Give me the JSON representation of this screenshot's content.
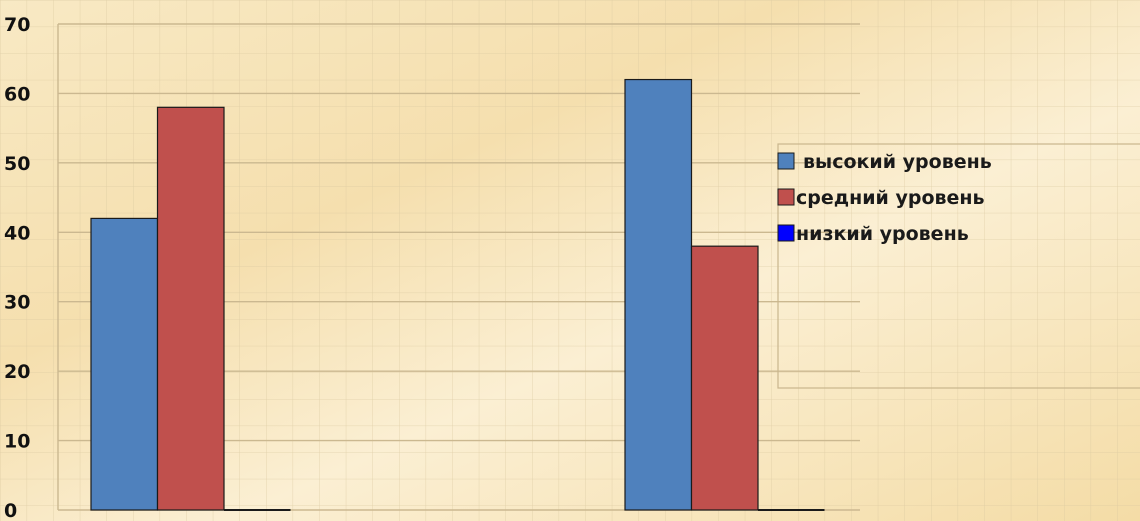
{
  "chart_data": {
    "type": "bar",
    "categories": [
      "",
      ""
    ],
    "series": [
      {
        "name": "высокий уровень",
        "values": [
          42,
          62
        ],
        "color": "#4f81bd"
      },
      {
        "name": "средний уровень",
        "values": [
          58,
          38
        ],
        "color": "#c0504d"
      },
      {
        "name": "низкий уровень",
        "values": [
          0,
          0
        ],
        "color": "#0000ff"
      }
    ],
    "yticks": [
      "0",
      "10",
      "20",
      "30",
      "40",
      "50",
      "60",
      "70"
    ],
    "ylim": [
      0,
      70
    ],
    "grid": true,
    "legend_position": "right"
  }
}
